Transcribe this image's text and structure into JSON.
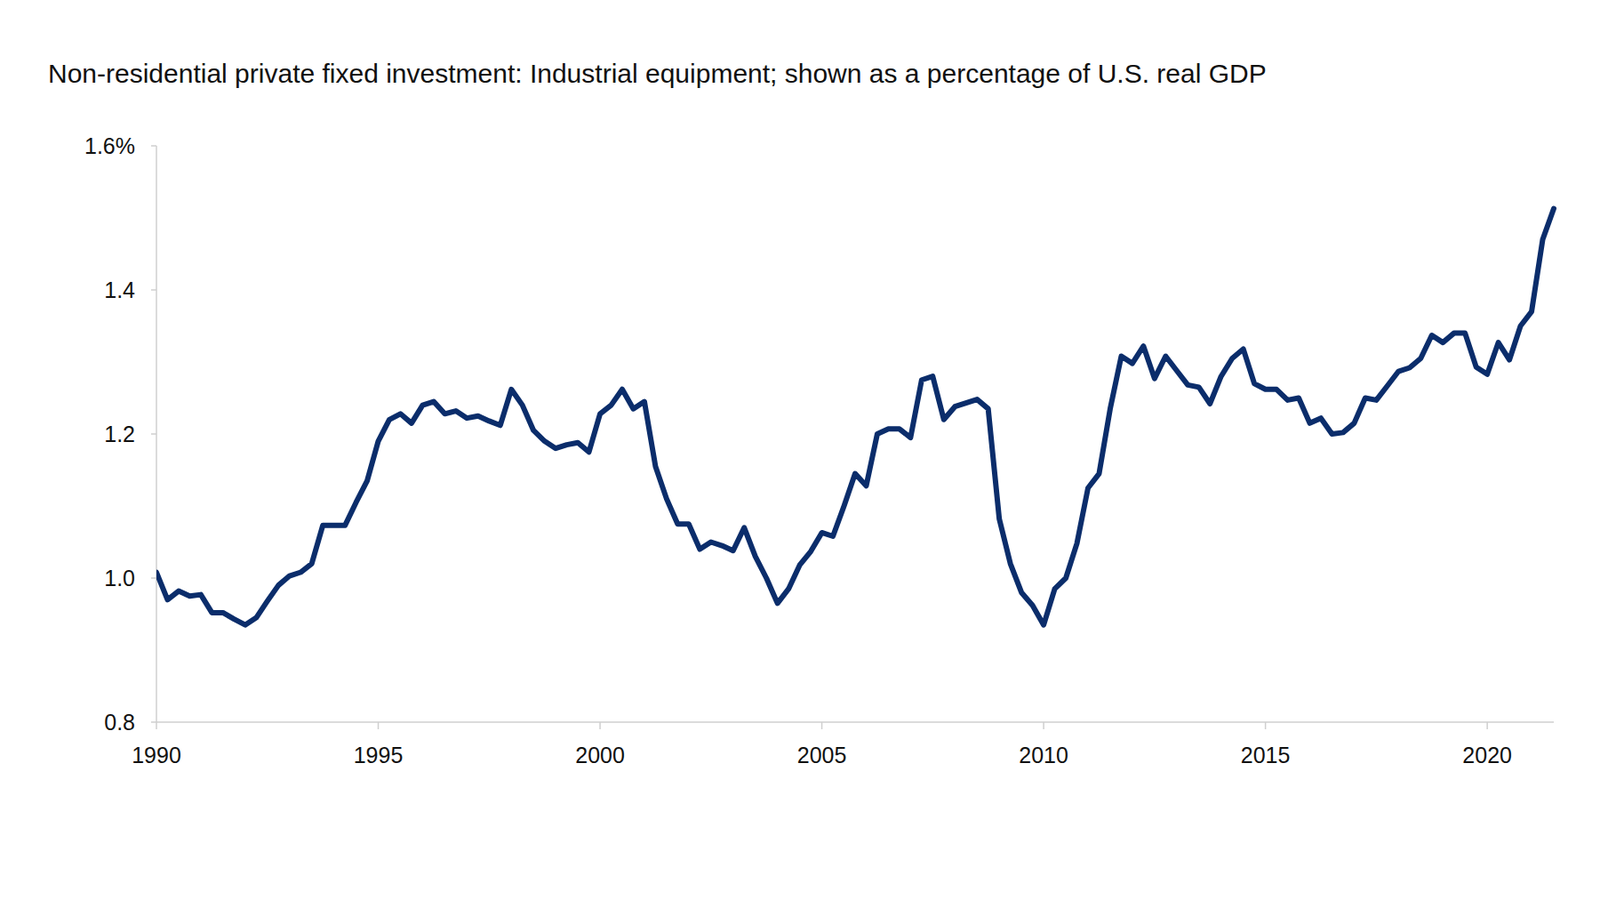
{
  "chart_data": {
    "type": "line",
    "title": "Non-residential private fixed investment: Industrial equipment; shown as a percentage of U.S. real GDP",
    "color": "#0b2d6b",
    "x": [
      1990,
      1990.25,
      1990.5,
      1990.75,
      1991,
      1991.25,
      1991.5,
      1991.75,
      1992,
      1992.25,
      1992.5,
      1992.75,
      1993,
      1993.25,
      1993.5,
      1993.75,
      1994,
      1994.25,
      1994.5,
      1994.75,
      1995,
      1995.25,
      1995.5,
      1995.75,
      1996,
      1996.25,
      1996.5,
      1996.75,
      1997,
      1997.25,
      1997.5,
      1997.75,
      1998,
      1998.25,
      1998.5,
      1998.75,
      1999,
      1999.25,
      1999.5,
      1999.75,
      2000,
      2000.25,
      2000.5,
      2000.75,
      2001,
      2001.25,
      2001.5,
      2001.75,
      2002,
      2002.25,
      2002.5,
      2002.75,
      2003,
      2003.25,
      2003.5,
      2003.75,
      2004,
      2004.25,
      2004.5,
      2004.75,
      2005,
      2005.25,
      2005.5,
      2005.75,
      2006,
      2006.25,
      2006.5,
      2006.75,
      2007,
      2007.25,
      2007.5,
      2007.75,
      2008,
      2008.25,
      2008.5,
      2008.75,
      2009,
      2009.25,
      2009.5,
      2009.75,
      2010,
      2010.25,
      2010.5,
      2010.75,
      2011,
      2011.25,
      2011.5,
      2011.75,
      2012,
      2012.25,
      2012.5,
      2012.75,
      2013,
      2013.25,
      2013.5,
      2013.75,
      2014,
      2014.25,
      2014.5,
      2014.75,
      2015,
      2015.25,
      2015.5,
      2015.75,
      2016,
      2016.25,
      2016.5,
      2016.75,
      2017,
      2017.25,
      2017.5,
      2017.75,
      2018,
      2018.25,
      2018.5,
      2018.75,
      2019,
      2019.25,
      2019.5,
      2019.75,
      2020,
      2020.25,
      2020.5,
      2020.75,
      2021,
      2021.25,
      2021.5
    ],
    "values": [
      1.008,
      0.97,
      0.982,
      0.975,
      0.977,
      0.952,
      0.952,
      0.943,
      0.935,
      0.945,
      0.968,
      0.99,
      1.003,
      1.008,
      1.02,
      1.073,
      1.073,
      1.073,
      1.105,
      1.135,
      1.19,
      1.22,
      1.228,
      1.215,
      1.24,
      1.245,
      1.228,
      1.232,
      1.222,
      1.225,
      1.218,
      1.212,
      1.262,
      1.24,
      1.205,
      1.19,
      1.18,
      1.185,
      1.188,
      1.175,
      1.228,
      1.24,
      1.262,
      1.235,
      1.245,
      1.155,
      1.11,
      1.075,
      1.075,
      1.04,
      1.05,
      1.045,
      1.038,
      1.07,
      1.03,
      1.0,
      0.965,
      0.985,
      1.018,
      1.037,
      1.063,
      1.058,
      1.1,
      1.145,
      1.128,
      1.2,
      1.207,
      1.207,
      1.195,
      1.275,
      1.28,
      1.22,
      1.238,
      1.243,
      1.248,
      1.235,
      1.082,
      1.02,
      0.98,
      0.962,
      0.935,
      0.985,
      1.0,
      1.048,
      1.125,
      1.145,
      1.235,
      1.308,
      1.298,
      1.322,
      1.277,
      1.308,
      1.288,
      1.268,
      1.265,
      1.242,
      1.28,
      1.305,
      1.318,
      1.27,
      1.262,
      1.262,
      1.247,
      1.25,
      1.215,
      1.222,
      1.2,
      1.202,
      1.215,
      1.25,
      1.247,
      1.267,
      1.287,
      1.292,
      1.305,
      1.337,
      1.327,
      1.34,
      1.34,
      1.293,
      1.283,
      1.327,
      1.303,
      1.35,
      1.37,
      1.47,
      1.513
    ],
    "xlim": [
      1990,
      2021.5
    ],
    "xticks": [
      1990,
      1995,
      2000,
      2005,
      2010,
      2015,
      2020
    ],
    "ylim": [
      0.8,
      1.6
    ],
    "yticks": [
      0.8,
      {
        "value": 1.0,
        "label": "1.0"
      },
      1.2,
      1.4,
      {
        "value": 1.6,
        "label": "1.6%"
      }
    ],
    "grid": false
  }
}
